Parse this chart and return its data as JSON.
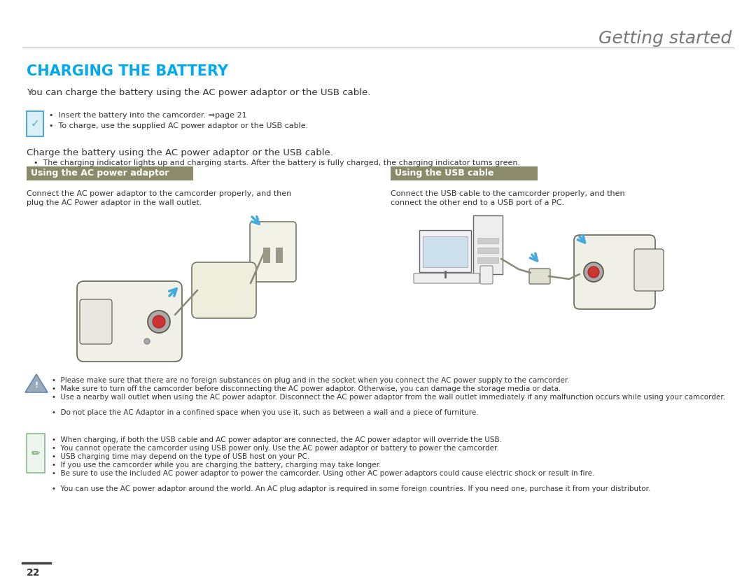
{
  "bg_color": "#ffffff",
  "title_text": "Getting started",
  "title_color": "#777777",
  "title_fontsize": 18,
  "section_title": "CHARGING THE BATTERY",
  "section_title_color": "#00aaee",
  "section_title_fontsize": 15,
  "intro_text": "You can charge the battery using the AC power adaptor or the USB cable.",
  "note_item1": "Insert the battery into the camcorder. ⇒page 21",
  "note_item2": "To charge, use the supplied AC power adaptor or the USB cable.",
  "charge_text": "Charge the battery using the AC power adaptor or the USB cable.",
  "charge_bullet": "The charging indicator lights up and charging starts. After the battery is fully charged, the charging indicator turns green.",
  "header_bg_color": "#8b8b6a",
  "header_text_color": "#ffffff",
  "left_header": "Using the AC power adaptor",
  "right_header": "Using the USB cable",
  "left_desc1": "Connect the AC power adaptor to the camcorder properly, and then",
  "left_desc2": "plug the AC Power adaptor in the wall outlet.",
  "right_desc1": "Connect the USB cable to the camcorder properly, and then",
  "right_desc2": "connect the other end to a USB port of a PC.",
  "warn1": "Please make sure that there are no foreign substances on plug and in the socket when you connect the AC power supply to the camcorder.",
  "warn2": "Make sure to turn off the camcorder before disconnecting the AC power adaptor. Otherwise, you can damage the storage media or data.",
  "warn3": "Use a nearby wall outlet when using the AC power adaptor. Disconnect the AC power adaptor from the wall outlet immediately if any malfunction occurs while using your camcorder.",
  "warn4": "Do not place the AC Adaptor in a confined space when you use it, such as between a wall and a piece of furniture.",
  "note2_1": "When charging, if both the USB cable and AC power adaptor are connected, the AC power adaptor will override the USB.",
  "note2_2": "You cannot operate the camcorder using USB power only. Use the AC power adaptor or battery to power the camcorder.",
  "note2_3": "USB charging time may depend on the type of USB host on your PC.",
  "note2_4": "If you use the camcorder while you are charging the battery, charging may take longer.",
  "note2_5": "Be sure to use the included AC power adaptor to power the camcorder. Using other AC power adaptors could cause electric shock or result in fire.",
  "note2_6": "You can use the AC power adaptor around the world. An AC plug adaptor is required in some foreign countries. If you need one, purchase it from your distributor.",
  "page_number": "22",
  "divider_color": "#aaaaaa",
  "body_text_color": "#333333",
  "note_box_border": "#55aacc",
  "note_box_bg": "#daf0f7",
  "arrow_color": "#44aadd",
  "body_fs": 9.5,
  "small_fs": 8.0,
  "tiny_fs": 7.5
}
